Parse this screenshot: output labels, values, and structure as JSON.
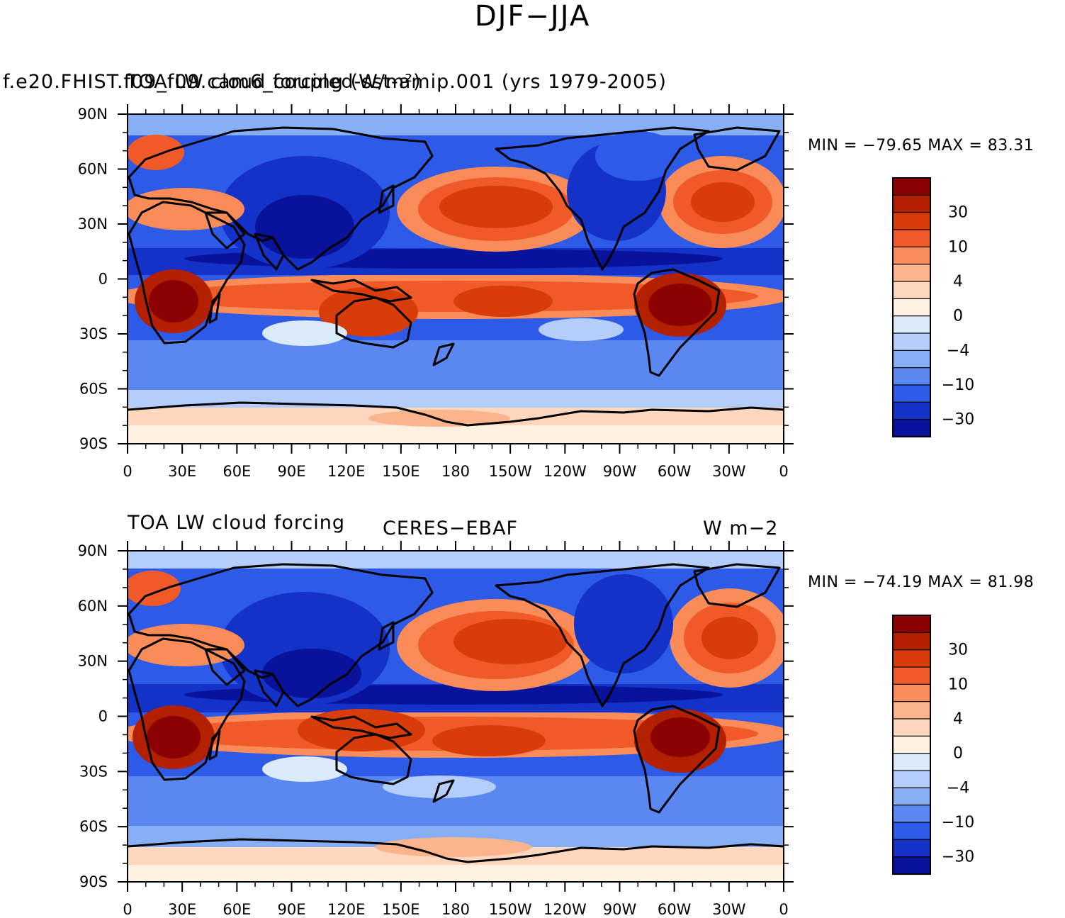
{
  "figure_title": "DJF−JJA",
  "panels": [
    {
      "left_title": "f.e20.FHIST.f09_f09.cam6_coupled-sst-amip.001 (yrs 1979-2005)",
      "left_title_overlay": "TOA LW cloud forcing (W/m²)",
      "center_title": "",
      "right_title": "",
      "stats": "MIN = −79.65  MAX =   83.31"
    },
    {
      "left_title": "TOA LW cloud forcing",
      "left_title_overlay": "",
      "center_title": "CERES−EBAF",
      "right_title": "W m−2",
      "stats": "MIN = −74.19  MAX =   81.98"
    }
  ],
  "axes": {
    "lat_labels": [
      "90N",
      "60N",
      "30N",
      "0",
      "30S",
      "60S",
      "90S"
    ],
    "lon_labels": [
      "0",
      "30E",
      "60E",
      "90E",
      "120E",
      "150E",
      "180",
      "150W",
      "120W",
      "90W",
      "60W",
      "30W",
      "0"
    ]
  },
  "colorbar": {
    "labels": [
      "30",
      "10",
      "4",
      "0",
      "−4",
      "−10",
      "−30"
    ],
    "colors": [
      "#8b0000",
      "#b22000",
      "#d73c0a",
      "#f05a28",
      "#fa8c5a",
      "#fbb48c",
      "#fed7be",
      "#fff0e1",
      "#dcebfa",
      "#b4cdfa",
      "#87aff5",
      "#5a87f0",
      "#2d5ae6",
      "#1432c8",
      "#08129a"
    ]
  },
  "color_scale": {
    "max_red": "#8b0000",
    "max_blue": "#08129a",
    "neutral": "#fff0e1"
  }
}
